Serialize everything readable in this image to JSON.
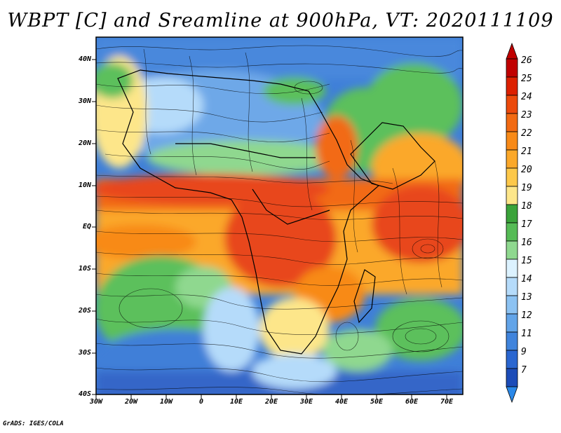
{
  "title": "WBPT [C] and Sreamline at 900hPa, VT: 2020111109",
  "credit": "GrADS: IGES/COLA",
  "lat_labels": [
    "40N",
    "30N",
    "20N",
    "10N",
    "EQ",
    "10S",
    "20S",
    "30S",
    "40S"
  ],
  "lon_labels": [
    "30W",
    "20W",
    "10W",
    "0",
    "10E",
    "20E",
    "30E",
    "40E",
    "50E",
    "60E",
    "70E"
  ],
  "colorbar": {
    "labels": [
      "26",
      "25",
      "24",
      "23",
      "22",
      "21",
      "20",
      "19",
      "18",
      "17",
      "16",
      "15",
      "14",
      "13",
      "12",
      "11",
      "9",
      "7"
    ],
    "colors": [
      "#c00000",
      "#dc2000",
      "#ec4a0c",
      "#f26a12",
      "#f88a18",
      "#fba82a",
      "#fdc84a",
      "#fde68a",
      "#3aa33a",
      "#55bb55",
      "#8fd88f",
      "#dcf2ff",
      "#b5dbfa",
      "#8cc2f2",
      "#62a4e8",
      "#4084dc",
      "#2a66d0",
      "#1c4cb8"
    ]
  },
  "colors": {
    "cold": "#3f7fd8",
    "cool": "#8cc2f2",
    "green": "#5cc05c",
    "warm": "#fba82a",
    "hot": "#e8461a",
    "streamline": "#000000"
  }
}
